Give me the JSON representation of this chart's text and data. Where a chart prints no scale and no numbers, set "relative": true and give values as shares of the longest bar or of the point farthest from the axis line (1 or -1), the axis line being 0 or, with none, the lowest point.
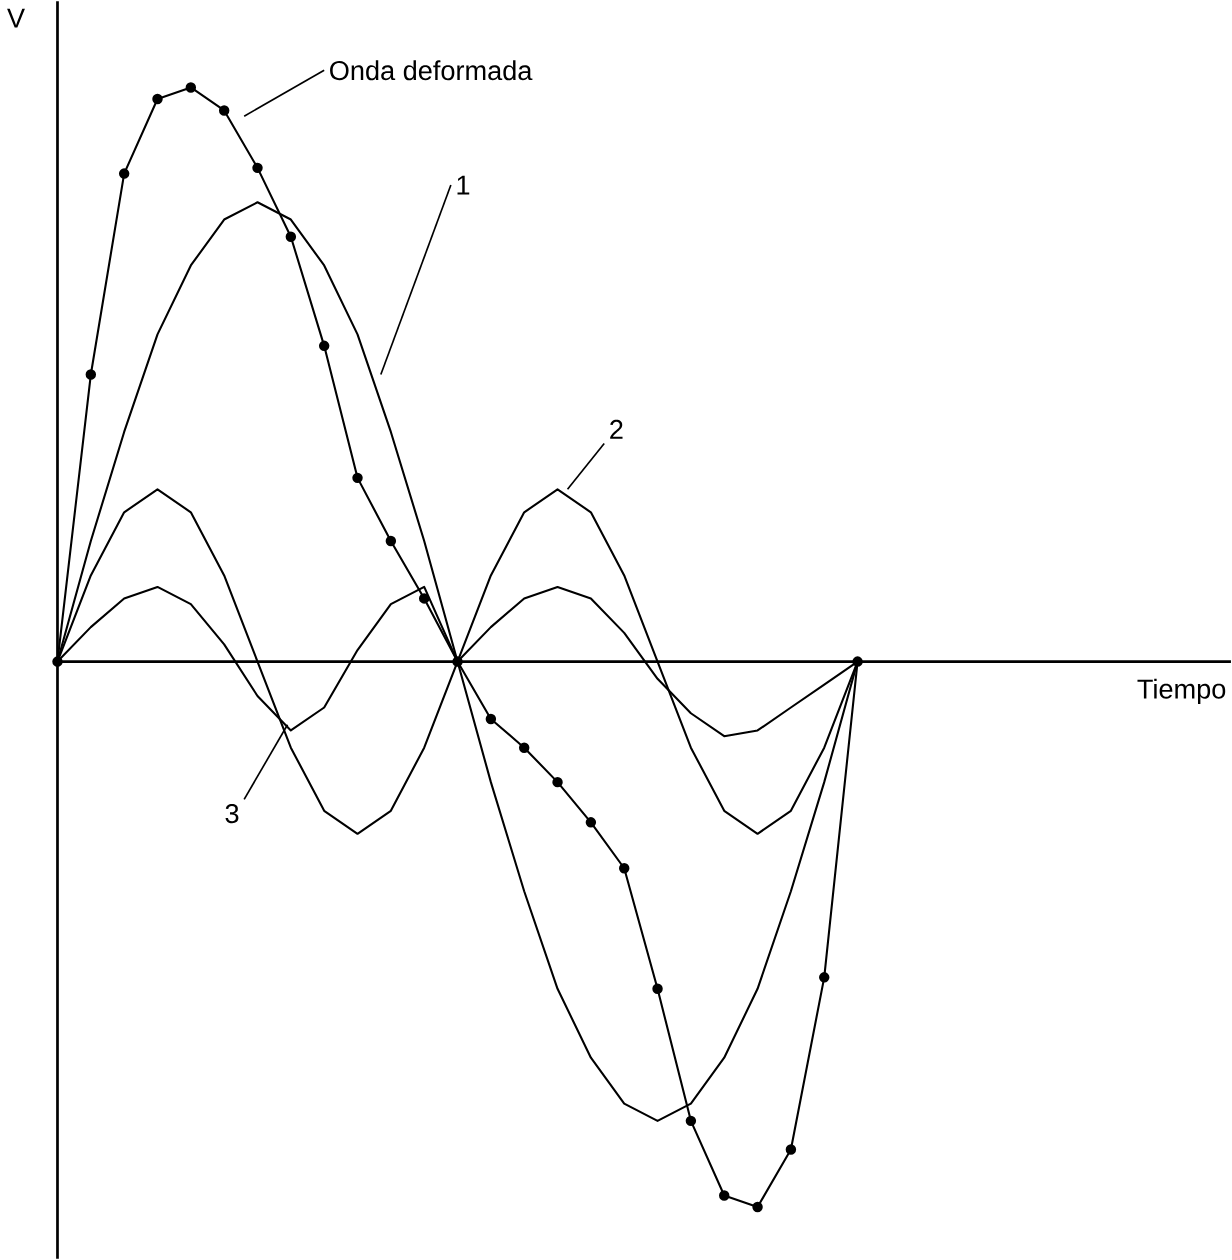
{
  "chart_data": {
    "type": "line",
    "relative": true,
    "annotations": [
      "Tiempo"
    ],
    "ylabel": "V",
    "categories": [
      null,
      null,
      null,
      null,
      null,
      null,
      null,
      null,
      null,
      null,
      null,
      null,
      null,
      null,
      null,
      null,
      null,
      null,
      null,
      null,
      null,
      null,
      null,
      null,
      null
    ],
    "series": [
      {
        "name": "Onda deformada",
        "color": "#000000",
        "marker": "circle",
        "values": [
          0,
          0.5,
          0.85,
          0.98,
          1.0,
          0.96,
          0.86,
          0.74,
          0.55,
          0.32,
          0.21,
          0.11,
          0,
          -0.1,
          -0.15,
          -0.21,
          -0.28,
          -0.36,
          -0.57,
          -0.8,
          -0.93,
          -0.95,
          -0.85,
          -0.55,
          0
        ]
      },
      {
        "name": "1",
        "color": "#000000",
        "values": [
          0,
          0.21,
          0.4,
          0.57,
          0.69,
          0.77,
          0.8,
          0.77,
          0.69,
          0.57,
          0.4,
          0.21,
          0,
          -0.21,
          -0.4,
          -0.57,
          -0.69,
          -0.77,
          -0.8,
          -0.77,
          -0.69,
          -0.57,
          -0.4,
          -0.21,
          0
        ]
      },
      {
        "name": "2",
        "color": "#000000",
        "values": [
          0,
          0.15,
          0.26,
          0.3,
          0.26,
          0.15,
          0,
          -0.15,
          -0.26,
          -0.3,
          -0.26,
          -0.15,
          0,
          0.15,
          0.26,
          0.3,
          0.26,
          0.15,
          0,
          -0.15,
          -0.26,
          -0.3,
          -0.26,
          -0.15,
          0
        ]
      },
      {
        "name": "3",
        "color": "#000000",
        "values": [
          0,
          0.06,
          0.11,
          0.13,
          0.1,
          0.03,
          -0.06,
          -0.12,
          -0.08,
          0.02,
          0.1,
          0.13,
          0,
          0.06,
          0.11,
          0.13,
          0.11,
          0.05,
          -0.03,
          -0.09,
          -0.13,
          -0.12,
          -0.08,
          -0.04,
          0
        ]
      }
    ]
  }
}
